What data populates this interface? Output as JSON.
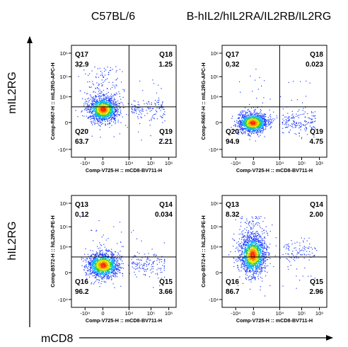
{
  "column_headers": [
    "C57BL/6",
    "B-hIL2/hIL2RA/IL2RB/IL2RG"
  ],
  "row_labels": [
    "mIL2RG",
    "hIL2RG"
  ],
  "bottom_axis_label": "mCD8",
  "chart_data": {
    "type": "scatter",
    "tick_labels": [
      "-10⁴",
      "0",
      "10⁴",
      "10⁵",
      "10⁶"
    ],
    "panels": [
      {
        "xlabel": "Comp-V725-H :: mCD8-BV711-H",
        "ylabel": "Comp-R667-H :: mIL2RG-APC-H",
        "quadrants": [
          {
            "name": "Q17",
            "value": "32.9"
          },
          {
            "name": "Q18",
            "value": "1.25"
          },
          {
            "name": "Q20",
            "value": "63.7"
          },
          {
            "name": "Q19",
            "value": "2.21"
          }
        ]
      },
      {
        "xlabel": "Comp-V725-H :: mCD8-BV711-H",
        "ylabel": "Comp-R667-H :: mIL2RG-APC-H",
        "quadrants": [
          {
            "name": "Q17",
            "value": "0.32"
          },
          {
            "name": "Q18",
            "value": "0.023"
          },
          {
            "name": "Q20",
            "value": "94.9"
          },
          {
            "name": "Q19",
            "value": "4.75"
          }
        ]
      },
      {
        "xlabel": "Comp-V725-H :: mCD8-BV711-H",
        "ylabel": "Comp-B572-H :: hIL2RG-PE-H",
        "quadrants": [
          {
            "name": "Q13",
            "value": "0.12"
          },
          {
            "name": "Q14",
            "value": "0.034"
          },
          {
            "name": "Q16",
            "value": "96.2"
          },
          {
            "name": "Q15",
            "value": "3.66"
          }
        ]
      },
      {
        "xlabel": "Comp-V725-H :: mCD8-BV711-H",
        "ylabel": "Comp-B572-H :: hIL2RG-PE-H",
        "quadrants": [
          {
            "name": "Q13",
            "value": "8.32"
          },
          {
            "name": "Q14",
            "value": "2.00"
          },
          {
            "name": "Q16",
            "value": "86.7"
          },
          {
            "name": "Q15",
            "value": "2.96"
          }
        ]
      }
    ]
  }
}
